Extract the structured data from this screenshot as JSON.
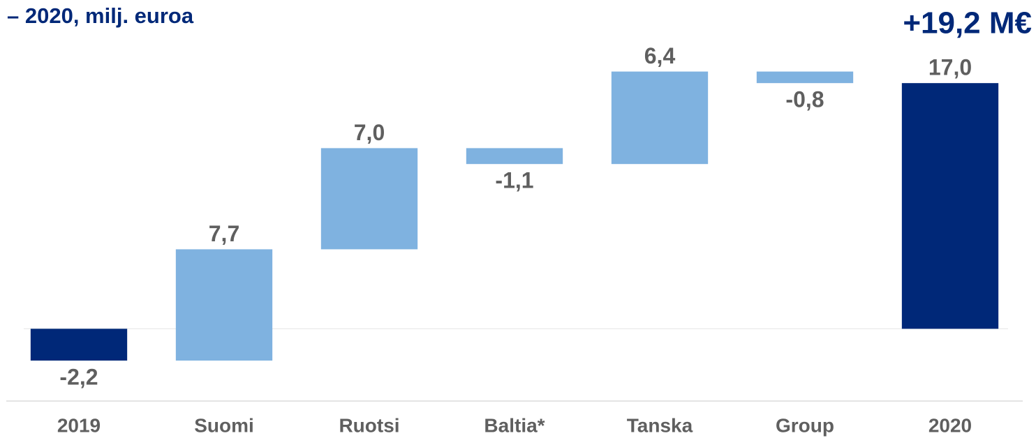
{
  "chart_data": {
    "type": "waterfall",
    "title": "– 2020, milj. euroa",
    "annotation": "+19,2 M€",
    "categories": [
      "2019",
      "Suomi",
      "Ruotsi",
      "Baltia*",
      "Tanska",
      "Group",
      "2020"
    ],
    "values": [
      -2.2,
      7.7,
      7.0,
      -1.1,
      6.4,
      -0.8,
      17.0
    ],
    "value_labels": [
      "-2,2",
      "7,7",
      "7,0",
      "-1,1",
      "6,4",
      "-0,8",
      "17,0"
    ],
    "measure": [
      "absolute",
      "relative",
      "relative",
      "relative",
      "relative",
      "relative",
      "total"
    ],
    "total_color": "#002878",
    "delta_color": "#7fb2e0",
    "ylim": [
      -5,
      20
    ]
  }
}
